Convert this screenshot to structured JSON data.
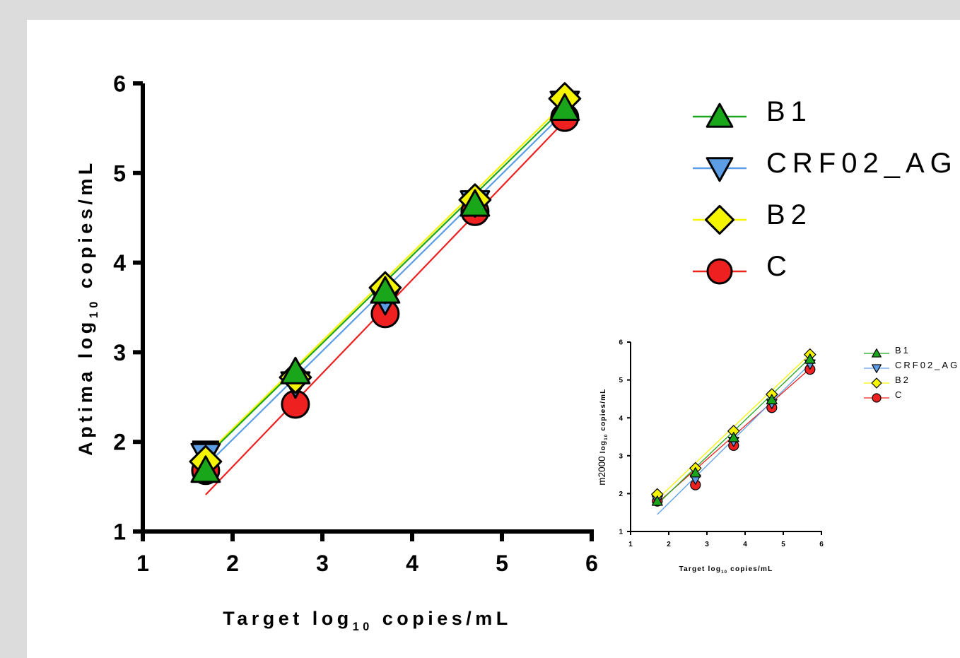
{
  "chart_data": [
    {
      "type": "line",
      "xlabel_main": "Target log",
      "xlabel_sub": "10",
      "xlabel_rest": " copies/mL",
      "ylabel_main": "Aptima log",
      "ylabel_sub": "10",
      "ylabel_rest": " copies/mL",
      "xlim": [
        1,
        6
      ],
      "ylim": [
        1,
        6
      ],
      "xticks": [
        "1",
        "2",
        "3",
        "4",
        "5",
        "6"
      ],
      "yticks": [
        "1",
        "2",
        "3",
        "4",
        "5",
        "6"
      ],
      "x": [
        1.7,
        2.7,
        3.7,
        4.7,
        5.7
      ],
      "series": [
        {
          "name": "B1",
          "color": "#1aa61a",
          "marker": "triangle-up",
          "values": [
            1.68,
            2.78,
            3.68,
            4.65,
            5.72
          ],
          "fit": [
            [
              1.7,
              1.83
            ],
            [
              5.7,
              5.74
            ]
          ]
        },
        {
          "name": "CRF02_AG",
          "color": "#5b9ee6",
          "marker": "triangle-down",
          "values": [
            1.85,
            2.65,
            3.58,
            4.67,
            5.78
          ],
          "fit": [
            [
              1.7,
              1.73
            ],
            [
              5.7,
              5.68
            ]
          ]
        },
        {
          "name": "B2",
          "color": "#f5f500",
          "marker": "diamond",
          "values": [
            1.78,
            2.72,
            3.72,
            4.7,
            5.83
          ],
          "fit": [
            [
              1.7,
              1.85
            ],
            [
              5.7,
              5.78
            ]
          ]
        },
        {
          "name": "C",
          "color": "#ee2020",
          "marker": "circle",
          "values": [
            1.68,
            2.42,
            3.43,
            4.57,
            5.62
          ],
          "fit": [
            [
              1.7,
              1.41
            ],
            [
              5.7,
              5.58
            ]
          ]
        }
      ],
      "error_bars": [
        {
          "series": "CRF02_AG",
          "x": 1.7,
          "low": 1.7,
          "high": 2.0
        }
      ]
    },
    {
      "type": "line",
      "xlabel_main": "Target log",
      "xlabel_sub": "10",
      "xlabel_rest": " copies/mL",
      "ylabel_main": "m2000",
      "ylabel_mid": " log",
      "ylabel_sub": "10",
      "ylabel_rest": " copies/mL",
      "xlim": [
        1,
        6
      ],
      "ylim": [
        1,
        6
      ],
      "xticks": [
        "1",
        "2",
        "3",
        "4",
        "5",
        "6"
      ],
      "yticks": [
        "1",
        "2",
        "3",
        "4",
        "5",
        "6"
      ],
      "x": [
        1.7,
        2.7,
        3.7,
        4.7,
        5.7
      ],
      "series": [
        {
          "name": "B1",
          "color": "#1aa61a",
          "marker": "triangle-up",
          "values": [
            1.8,
            2.55,
            3.48,
            4.48,
            5.55
          ],
          "fit": [
            [
              1.7,
              1.72
            ],
            [
              5.7,
              5.58
            ]
          ]
        },
        {
          "name": "CRF02_AG",
          "color": "#5b9ee6",
          "marker": "triangle-down",
          "values": [
            1.83,
            2.38,
            3.38,
            4.38,
            5.42
          ],
          "fit": [
            [
              1.7,
              1.45
            ],
            [
              5.7,
              5.42
            ]
          ]
        },
        {
          "name": "B2",
          "color": "#f5f500",
          "marker": "diamond",
          "values": [
            1.98,
            2.67,
            3.65,
            4.62,
            5.67
          ],
          "fit": [
            [
              1.7,
              1.85
            ],
            [
              5.7,
              5.68
            ]
          ]
        },
        {
          "name": "C",
          "color": "#ee2020",
          "marker": "circle",
          "values": [
            1.8,
            2.23,
            3.27,
            4.27,
            5.28
          ],
          "fit": [
            [
              1.7,
              1.75
            ],
            [
              5.7,
              5.3
            ]
          ]
        }
      ]
    }
  ],
  "legend_main": [
    {
      "label": "B1",
      "color": "#1aa61a",
      "marker": "triangle-up"
    },
    {
      "label": "CRF02_AG",
      "color": "#5b9ee6",
      "marker": "triangle-down"
    },
    {
      "label": "B2",
      "color": "#f5f500",
      "marker": "diamond"
    },
    {
      "label": "C",
      "color": "#ee2020",
      "marker": "circle"
    }
  ],
  "legend_inset": [
    {
      "label": "B1",
      "color": "#1aa61a",
      "marker": "triangle-up"
    },
    {
      "label": "CRF02_AG",
      "color": "#5b9ee6",
      "marker": "triangle-down"
    },
    {
      "label": "B2",
      "color": "#f5f500",
      "marker": "diamond"
    },
    {
      "label": "C",
      "color": "#ee2020",
      "marker": "circle"
    }
  ]
}
